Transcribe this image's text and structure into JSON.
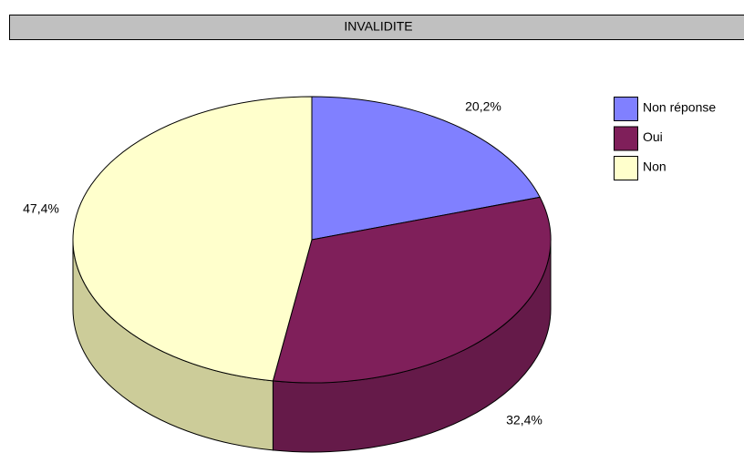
{
  "chart_data": {
    "type": "pie3d",
    "title": "INVALIDITE",
    "categories": [
      "Non réponse",
      "Oui",
      "Non"
    ],
    "values": [
      20.2,
      32.4,
      47.4
    ],
    "value_labels": [
      "20,2%",
      "32,4%",
      "47,4%"
    ],
    "colors": [
      "#8080ff",
      "#7f1f5a",
      "#ffffcc"
    ],
    "side_colors": [
      "#6060bf",
      "#651a49",
      "#cccc99"
    ]
  }
}
